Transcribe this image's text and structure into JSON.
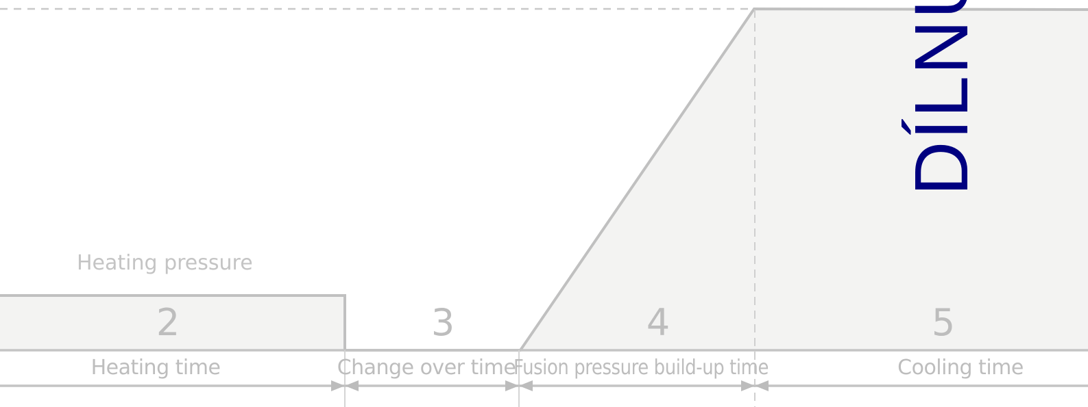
{
  "labels": {
    "heating_pressure": "Heating pressure",
    "vertical_stamp": "DÍLNU"
  },
  "zones": [
    {
      "number": "2",
      "label": "Heating time"
    },
    {
      "number": "3",
      "label": "Change over time"
    },
    {
      "number": "4",
      "label": "Fusion pressure build-up time"
    },
    {
      "number": "5",
      "label": "Cooling time"
    }
  ],
  "colors": {
    "outline": "#c0c0c0",
    "fill": "#f3f3f2",
    "text": "#bdbdbd",
    "stamp": "#000080"
  }
}
